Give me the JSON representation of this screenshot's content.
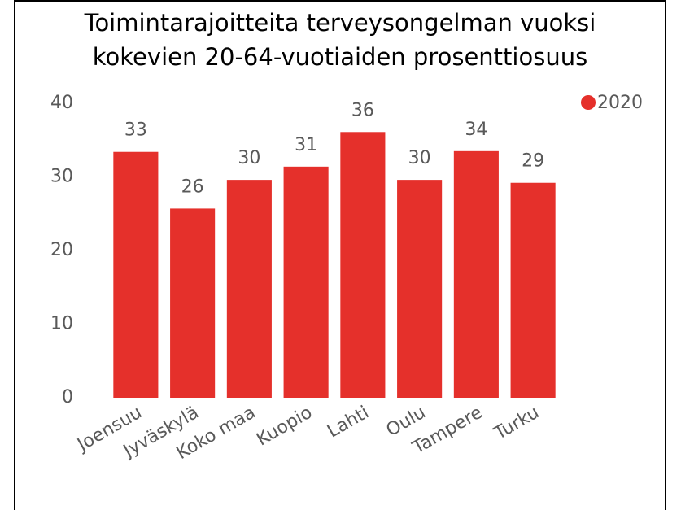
{
  "chart_data": {
    "type": "bar",
    "title": [
      "Toimintarajoitteita terveysongelman vuoksi",
      "kokevien 20-64-vuotiaiden prosenttiosuus"
    ],
    "categories": [
      "Joensuu",
      "Jyväskylä",
      "Koko maa",
      "Kuopio",
      "Lahti",
      "Oulu",
      "Tampere",
      "Turku"
    ],
    "series": [
      {
        "name": "2020",
        "color": "#e5302b",
        "values": [
          33.4,
          25.7,
          29.6,
          31.4,
          36.1,
          29.6,
          33.5,
          29.2
        ],
        "value_labels": [
          "33",
          "26",
          "30",
          "31",
          "36",
          "30",
          "34",
          "29"
        ]
      }
    ],
    "ylim": [
      0,
      40
    ],
    "yticks": [
      0,
      10,
      20,
      30,
      40
    ],
    "grid": false,
    "legend": "top-right"
  }
}
